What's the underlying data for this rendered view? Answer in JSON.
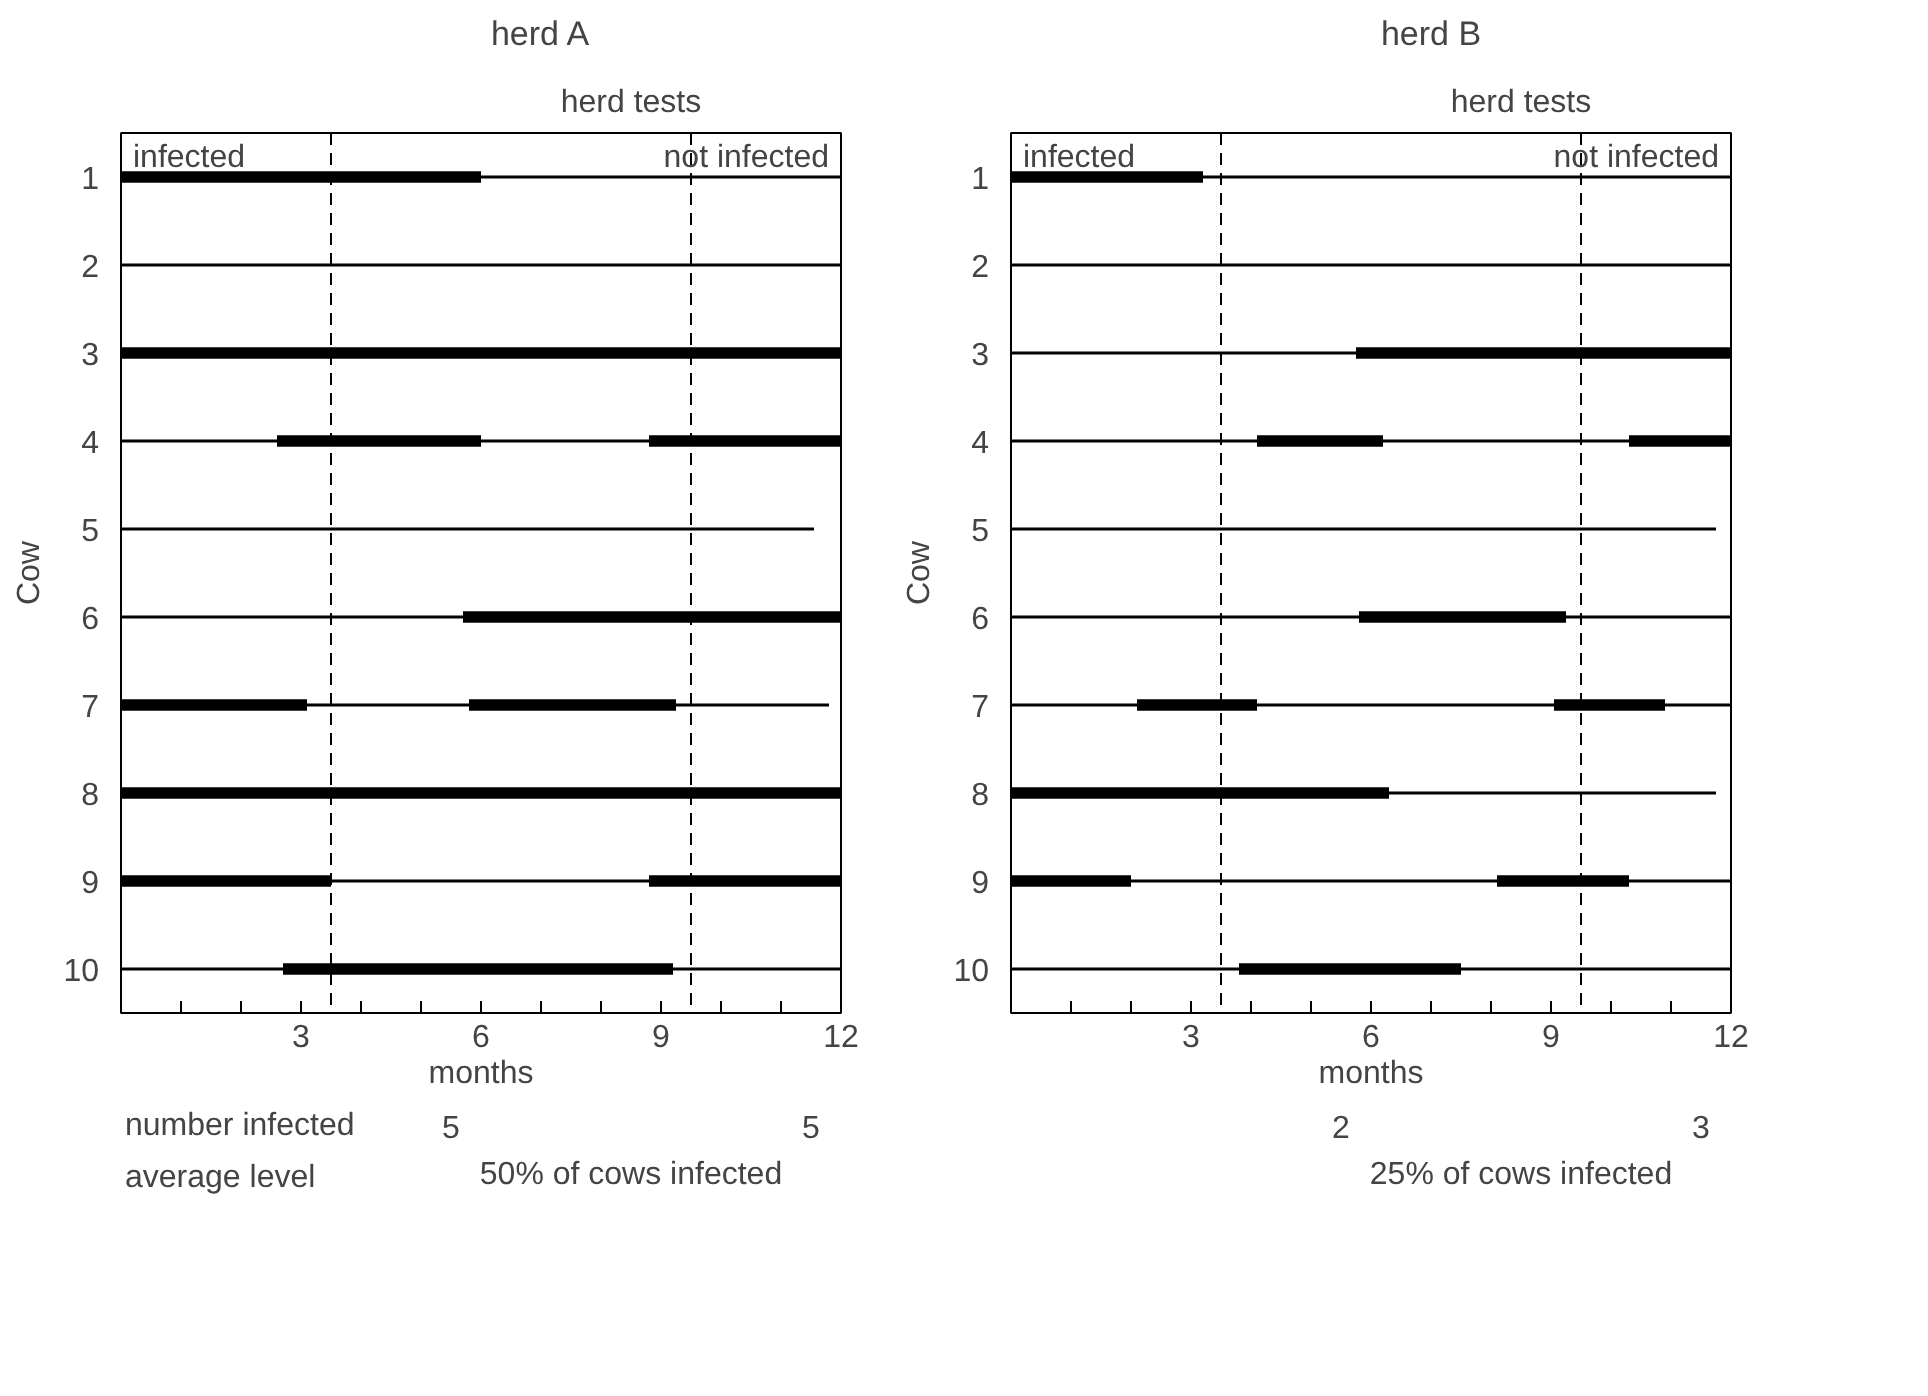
{
  "chart_data": [
    {
      "type": "bar",
      "orientation": "horizontal",
      "stacked": true,
      "title": "herd A",
      "xlabel": "months",
      "ylabel": "Cow",
      "categories": [
        "1",
        "2",
        "3",
        "4",
        "5",
        "6",
        "7",
        "8",
        "9",
        "10"
      ],
      "series": [
        {
          "color": "#000000",
          "values": [
            6,
            null,
            12,
            null,
            null,
            null,
            3.1,
            12,
            3.5,
            null
          ]
        },
        {
          "color": "#000000",
          "values": [
            6,
            12,
            null,
            2.6,
            11.55,
            5.7,
            2.7,
            null,
            5.3,
            2.7
          ]
        },
        {
          "color": "#000000",
          "values": [
            null,
            null,
            null,
            3.4,
            null,
            6.3,
            3.45,
            null,
            3.2,
            6.5
          ]
        },
        {
          "color": "#000000",
          "values": [
            null,
            null,
            null,
            2.8,
            null,
            null,
            2.55,
            null,
            null,
            2.8
          ]
        },
        {
          "color": "#000000",
          "values": [
            null,
            null,
            null,
            3.2,
            null,
            null,
            null,
            null,
            null,
            null
          ]
        }
      ],
      "xlim": [
        0,
        12
      ],
      "xticks": [
        {
          "value": 1,
          "label": null
        },
        {
          "value": 2,
          "label": null
        },
        3,
        {
          "value": 4,
          "label": null
        },
        {
          "value": 5,
          "label": null
        },
        6,
        {
          "value": 7,
          "label": null
        },
        {
          "value": 8,
          "label": null
        },
        9,
        {
          "value": 10,
          "label": null
        },
        {
          "value": 11,
          "label": null
        },
        12
      ],
      "ref_lines": [
        {
          "axis": "x",
          "value": 3.5,
          "line_style": "dashed"
        },
        {
          "axis": "x",
          "value": 9.5,
          "line_style": "dashed"
        }
      ],
      "annotations": [
        "herd tests",
        "infected",
        "not infected",
        "5",
        "5",
        "number infected",
        "average level",
        "50% of cows infected"
      ]
    },
    {
      "type": "bar",
      "orientation": "horizontal",
      "stacked": true,
      "title": "herd B",
      "xlabel": "months",
      "ylabel": "Cow",
      "categories": [
        "1",
        "2",
        "3",
        "4",
        "5",
        "6",
        "7",
        "8",
        "9",
        "10"
      ],
      "series": [
        {
          "color": "#000000",
          "values": [
            3.2,
            null,
            null,
            null,
            null,
            null,
            null,
            6.3,
            2.0,
            null
          ]
        },
        {
          "color": "#000000",
          "values": [
            8.8,
            12,
            5.75,
            4.1,
            11.75,
            5.8,
            2.1,
            5.45,
            6.1,
            3.8
          ]
        },
        {
          "color": "#000000",
          "values": [
            null,
            null,
            6.25,
            2.1,
            null,
            3.45,
            2.0,
            null,
            2.2,
            3.7
          ]
        },
        {
          "color": "#000000",
          "values": [
            null,
            null,
            null,
            4.1,
            null,
            2.75,
            4.95,
            null,
            1.7,
            4.5
          ]
        },
        {
          "color": "#000000",
          "values": [
            null,
            null,
            null,
            1.7,
            null,
            null,
            1.85,
            null,
            null,
            null
          ]
        },
        {
          "color": "#000000",
          "values": [
            null,
            null,
            null,
            null,
            null,
            null,
            1.1,
            null,
            null,
            null
          ]
        }
      ],
      "xlim": [
        0,
        12
      ],
      "xticks": [
        {
          "value": 1,
          "label": null
        },
        {
          "value": 2,
          "label": null
        },
        3,
        {
          "value": 4,
          "label": null
        },
        {
          "value": 5,
          "label": null
        },
        6,
        {
          "value": 7,
          "label": null
        },
        {
          "value": 8,
          "label": null
        },
        9,
        {
          "value": 10,
          "label": null
        },
        {
          "value": 11,
          "label": null
        },
        12
      ],
      "ref_lines": [
        {
          "axis": "x",
          "value": 3.5,
          "line_style": "dashed"
        },
        {
          "axis": "x",
          "value": 9.5,
          "line_style": "dashed"
        }
      ],
      "annotations": [
        "herd tests",
        "infected",
        "not infected",
        "2",
        "3",
        "25% of cows infected"
      ]
    }
  ]
}
